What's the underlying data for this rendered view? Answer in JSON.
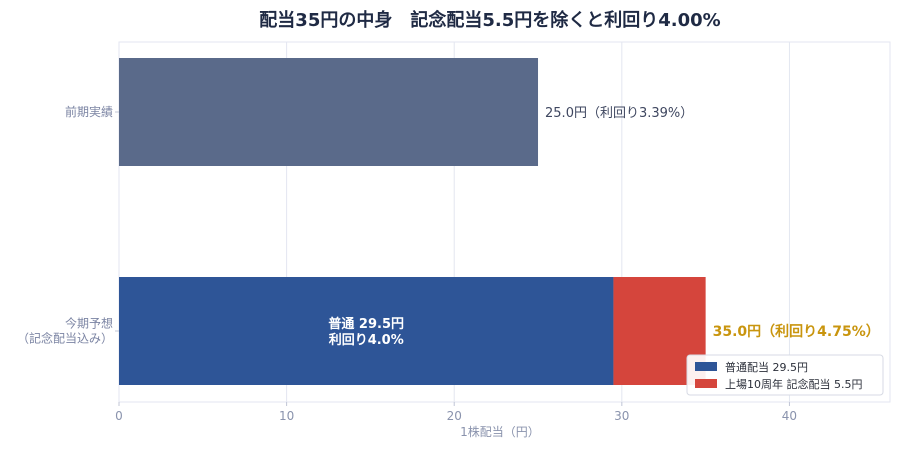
{
  "chart_data": {
    "type": "bar",
    "orientation": "horizontal",
    "stacked": true,
    "title": "配当35円の中身　記念配当5.5円を除くと利回り4.00%",
    "xlabel": "1株配当（円）",
    "ylabel": "",
    "xlim": [
      0,
      46
    ],
    "xticks": [
      "0",
      "10",
      "20",
      "30",
      "40"
    ],
    "grid": true,
    "legend_position": "bottom-right",
    "categories": [
      {
        "label_lines": [
          "前期実績"
        ]
      },
      {
        "label_lines": [
          "今期予想",
          "（記念配当込み）"
        ]
      }
    ],
    "prior": {
      "value": 25.0,
      "label": "25.0円（利回り3.39%）",
      "color": "#5a6a8a"
    },
    "series": [
      {
        "name": "普通配当 29.5円",
        "color": "#2e5597",
        "value": 29.5,
        "inner_label": [
          "普通 29.5円",
          "利回り4.0%"
        ]
      },
      {
        "name": "上場10周年 記念配当 5.5円",
        "color": "#d5453c",
        "value": 5.5
      }
    ],
    "total_label": "35.0円（利回り4.75%）",
    "colors": {
      "gold": "#c9950e",
      "grid": "#e3e6f0"
    }
  }
}
